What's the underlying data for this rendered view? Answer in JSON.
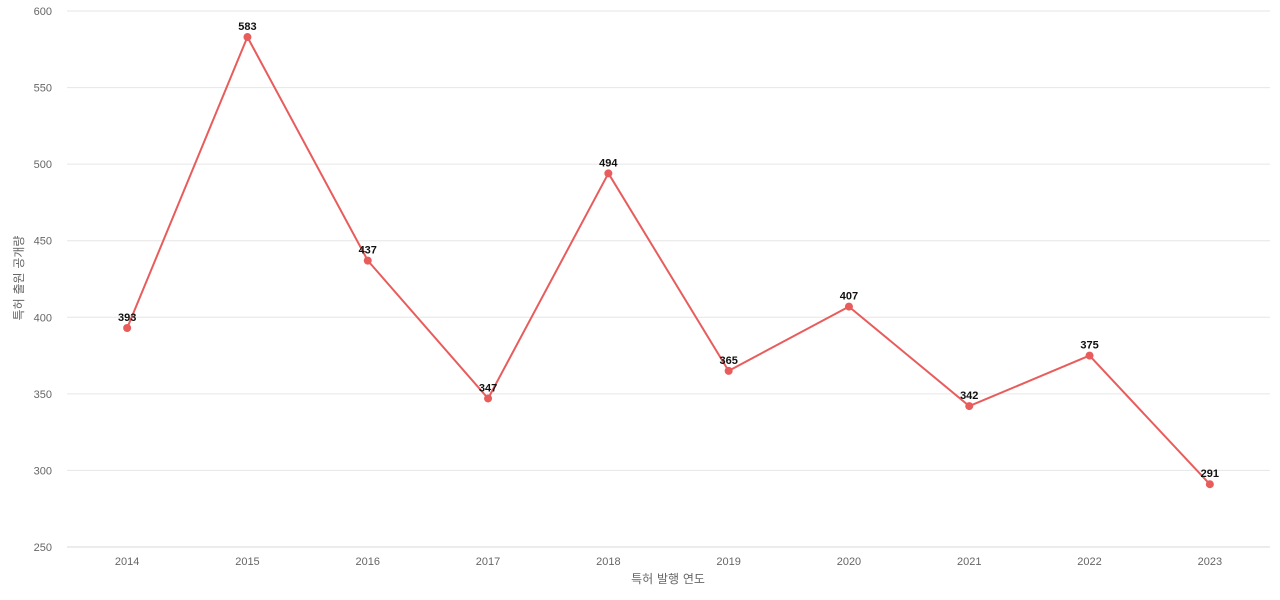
{
  "chart_data": {
    "type": "line",
    "title": "",
    "xlabel": "특허 발행 연도",
    "ylabel": "특허 출원 공개량",
    "categories": [
      "2014",
      "2015",
      "2016",
      "2017",
      "2018",
      "2019",
      "2020",
      "2021",
      "2022",
      "2023"
    ],
    "series": [
      {
        "values": [
          393,
          583,
          437,
          347,
          494,
          365,
          407,
          342,
          375,
          291
        ],
        "color": "#e85c5c"
      }
    ],
    "ylim": [
      250,
      600
    ],
    "yticks": [
      "250",
      "300",
      "350",
      "400",
      "450",
      "500",
      "550",
      "600"
    ],
    "grid": true,
    "data_labels": true
  }
}
